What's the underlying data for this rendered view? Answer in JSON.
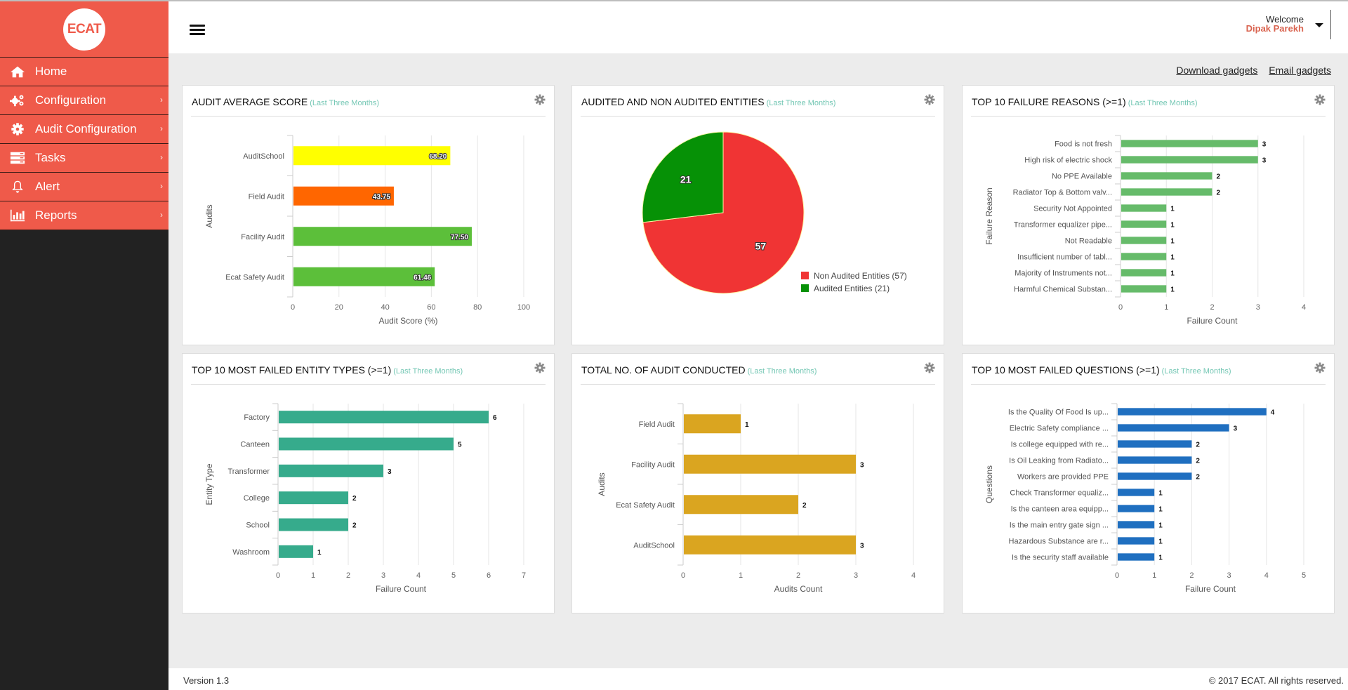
{
  "app": {
    "logo_text": "ECAT"
  },
  "sidebar": {
    "items": [
      {
        "label": "Home",
        "icon": "home-icon",
        "chevron": false
      },
      {
        "label": "Configuration",
        "icon": "cogs-icon",
        "chevron": true
      },
      {
        "label": "Audit Configuration",
        "icon": "gear-icon",
        "chevron": true
      },
      {
        "label": "Tasks",
        "icon": "tasks-icon",
        "chevron": true
      },
      {
        "label": "Alert",
        "icon": "bell-icon",
        "chevron": true
      },
      {
        "label": "Reports",
        "icon": "bar-chart-icon",
        "chevron": true
      }
    ],
    "chevron_glyph": "›"
  },
  "header": {
    "welcome_label": "Welcome",
    "user_name": "Dipak Parekh"
  },
  "links": {
    "download": "Download gadgets",
    "email": "Email gadgets"
  },
  "footer": {
    "version": "Version 1.3",
    "copyright": "© 2017 ECAT. All rights reserved."
  },
  "colors": {
    "brand": "#ef5a4a",
    "subtitle": "#74c7b4"
  },
  "chart_data": [
    {
      "id": "audit-average-score",
      "type": "bar",
      "orientation": "horizontal",
      "title": "AUDIT AVERAGE SCORE",
      "subtitle": "(Last Three Months)",
      "categories": [
        "AuditSchool",
        "Field Audit",
        "Facility Audit",
        "Ecat Safety Audit"
      ],
      "values": [
        68.2,
        43.75,
        77.5,
        61.46
      ],
      "value_labels": [
        "68.20",
        "43.75",
        "77.50",
        "61.46"
      ],
      "bar_colors": [
        "#ffff00",
        "#ff6600",
        "#5cbf3a",
        "#5cbf3a"
      ],
      "label_position": "inside",
      "xlabel": "Audit Score (%)",
      "ylabel": "Audits",
      "xlim": [
        0,
        100
      ],
      "xticks": [
        0,
        20,
        40,
        60,
        80,
        100
      ],
      "grid": true
    },
    {
      "id": "audited-non-audited",
      "type": "pie",
      "title": "AUDITED AND NON AUDITED ENTITIES",
      "subtitle": "(Last Three Months)",
      "slices": [
        {
          "label": "Non Audited Entities",
          "value": 57,
          "color": "#f03434",
          "legend": "Non Audited Entities (57)"
        },
        {
          "label": "Audited Entities",
          "value": 21,
          "color": "#069106",
          "legend": "Audited Entities (21)"
        }
      ],
      "legend_position": "bottom-right"
    },
    {
      "id": "top-failure-reasons",
      "type": "bar",
      "orientation": "horizontal",
      "title": "TOP 10 FAILURE REASONS (>=1)",
      "subtitle": "(Last Three Months)",
      "categories": [
        "Food is not fresh",
        "High risk of electric shock",
        "No PPE Available",
        "Radiator Top & Bottom valv...",
        "Security Not Appointed",
        "Transformer equalizer pipe...",
        "Not Readable",
        "Insufficient number of tabl...",
        "Majority of Instruments not...",
        "Harmful Chemical Substan..."
      ],
      "values": [
        3,
        3,
        2,
        2,
        1,
        1,
        1,
        1,
        1,
        1
      ],
      "bar_color": "#66bb6a",
      "label_position": "outside",
      "xlabel": "Failure Count",
      "ylabel": "Failure Reason",
      "xlim": [
        0,
        4
      ],
      "xticks": [
        0,
        1,
        2,
        3,
        4
      ],
      "grid": true
    },
    {
      "id": "top-failed-entity-types",
      "type": "bar",
      "orientation": "horizontal",
      "title": "TOP 10 MOST FAILED ENTITY TYPES (>=1)",
      "subtitle": "(Last Three Months)",
      "categories": [
        "Factory",
        "Canteen",
        "Transformer",
        "College",
        "School",
        "Washroom"
      ],
      "values": [
        6,
        5,
        3,
        2,
        2,
        1
      ],
      "bar_color": "#36ab8c",
      "label_position": "outside",
      "xlabel": "Failure Count",
      "ylabel": "Entity Type",
      "xlim": [
        0,
        7
      ],
      "xticks": [
        0,
        1,
        2,
        3,
        4,
        5,
        6,
        7
      ],
      "grid": true
    },
    {
      "id": "total-audit-conducted",
      "type": "bar",
      "orientation": "horizontal",
      "title": "TOTAL NO. OF AUDIT CONDUCTED",
      "subtitle": "(Last Three Months)",
      "categories": [
        "Field Audit",
        "Facility Audit",
        "Ecat Safety Audit",
        "AuditSchool"
      ],
      "values": [
        1,
        3,
        2,
        3
      ],
      "bar_color": "#daa520",
      "label_position": "outside",
      "xlabel": "Audits Count",
      "ylabel": "Audits",
      "xlim": [
        0,
        4
      ],
      "xticks": [
        0,
        1,
        2,
        3,
        4
      ],
      "grid": true
    },
    {
      "id": "top-failed-questions",
      "type": "bar",
      "orientation": "horizontal",
      "title": "TOP 10 MOST FAILED QUESTIONS (>=1)",
      "subtitle": "(Last Three Months)",
      "categories": [
        "Is the Quality Of Food Is up...",
        "Electric Safety compliance ...",
        "Is college equipped with re...",
        "Is Oil Leaking from Radiato...",
        "Workers are provided PPE",
        "Check Transformer equaliz...",
        "Is the canteen area equipp...",
        "Is the main entry gate sign ...",
        "Hazardous Substance are r...",
        "Is the security staff available"
      ],
      "values": [
        4,
        3,
        2,
        2,
        2,
        1,
        1,
        1,
        1,
        1
      ],
      "bar_color": "#1f6fc0",
      "label_position": "outside",
      "xlabel": "Failure Count",
      "ylabel": "Questions",
      "xlim": [
        0,
        5
      ],
      "xticks": [
        0,
        1,
        2,
        3,
        4,
        5
      ],
      "grid": true
    }
  ]
}
